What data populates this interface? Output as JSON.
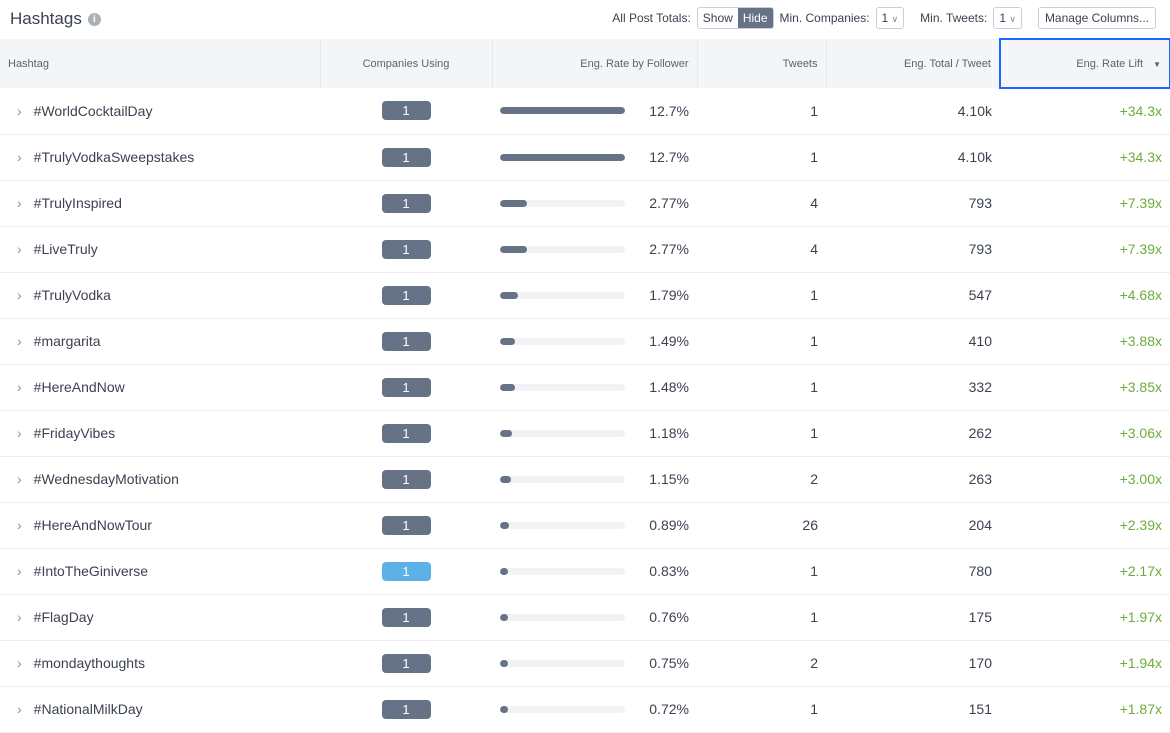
{
  "header": {
    "title": "Hashtags",
    "info_icon": "info-icon",
    "post_totals_label": "All Post Totals:",
    "show": "Show",
    "hide": "Hide",
    "selected": "Hide",
    "min_companies_label": "Min. Companies:",
    "min_companies": "1",
    "min_tweets_label": "Min. Tweets:",
    "min_tweets": "1",
    "manage_columns": "Manage Columns..."
  },
  "columns": [
    "Hashtag",
    "Companies Using",
    "Eng. Rate by Follower",
    "Tweets",
    "Eng. Total / Tweet",
    "Eng. Rate Lift"
  ],
  "sort": {
    "column": "Eng. Rate Lift",
    "direction": "desc"
  },
  "colors": {
    "badge": "#667285",
    "badge_highlight": "#5db1e6",
    "lift": "#6cad3a",
    "sort_outline": "#1a66ff"
  },
  "rows": [
    {
      "tag": "#WorldCocktailDay",
      "companies": "1",
      "rate": "12.7%",
      "rate_val": 12.7,
      "tweets": "1",
      "total": "4.10k",
      "lift": "+34.3x"
    },
    {
      "tag": "#TrulyVodkaSweepstakes",
      "companies": "1",
      "rate": "12.7%",
      "rate_val": 12.7,
      "tweets": "1",
      "total": "4.10k",
      "lift": "+34.3x"
    },
    {
      "tag": "#TrulyInspired",
      "companies": "1",
      "rate": "2.77%",
      "rate_val": 2.77,
      "tweets": "4",
      "total": "793",
      "lift": "+7.39x"
    },
    {
      "tag": "#LiveTruly",
      "companies": "1",
      "rate": "2.77%",
      "rate_val": 2.77,
      "tweets": "4",
      "total": "793",
      "lift": "+7.39x"
    },
    {
      "tag": "#TrulyVodka",
      "companies": "1",
      "rate": "1.79%",
      "rate_val": 1.79,
      "tweets": "1",
      "total": "547",
      "lift": "+4.68x"
    },
    {
      "tag": "#margarita",
      "companies": "1",
      "rate": "1.49%",
      "rate_val": 1.49,
      "tweets": "1",
      "total": "410",
      "lift": "+3.88x"
    },
    {
      "tag": "#HereAndNow",
      "companies": "1",
      "rate": "1.48%",
      "rate_val": 1.48,
      "tweets": "1",
      "total": "332",
      "lift": "+3.85x"
    },
    {
      "tag": "#FridayVibes",
      "companies": "1",
      "rate": "1.18%",
      "rate_val": 1.18,
      "tweets": "1",
      "total": "262",
      "lift": "+3.06x"
    },
    {
      "tag": "#WednesdayMotivation",
      "companies": "1",
      "rate": "1.15%",
      "rate_val": 1.15,
      "tweets": "2",
      "total": "263",
      "lift": "+3.00x"
    },
    {
      "tag": "#HereAndNowTour",
      "companies": "1",
      "rate": "0.89%",
      "rate_val": 0.89,
      "tweets": "26",
      "total": "204",
      "lift": "+2.39x"
    },
    {
      "tag": "#IntoTheGiniverse",
      "companies": "1",
      "rate": "0.83%",
      "rate_val": 0.83,
      "tweets": "1",
      "total": "780",
      "lift": "+2.17x",
      "highlight": true
    },
    {
      "tag": "#FlagDay",
      "companies": "1",
      "rate": "0.76%",
      "rate_val": 0.76,
      "tweets": "1",
      "total": "175",
      "lift": "+1.97x"
    },
    {
      "tag": "#mondaythoughts",
      "companies": "1",
      "rate": "0.75%",
      "rate_val": 0.75,
      "tweets": "2",
      "total": "170",
      "lift": "+1.94x"
    },
    {
      "tag": "#NationalMilkDay",
      "companies": "1",
      "rate": "0.72%",
      "rate_val": 0.72,
      "tweets": "1",
      "total": "151",
      "lift": "+1.87x"
    }
  ]
}
